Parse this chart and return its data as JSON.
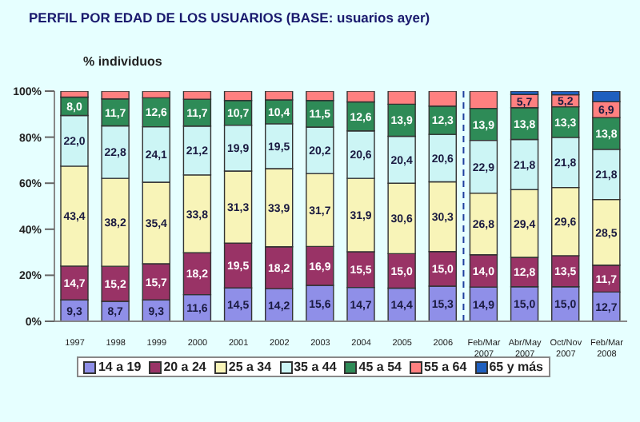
{
  "chart_data": {
    "type": "bar",
    "stacked": true,
    "title": "PERFIL POR EDAD DE LOS USUARIOS (BASE: usuarios ayer)",
    "ylabel": "% individuos",
    "categories": [
      "1997",
      "1998",
      "1999",
      "2000",
      "2001",
      "2002",
      "2003",
      "2004",
      "2005",
      "2006",
      "Feb/Mar 2007",
      "Abr/May 2007",
      "Oct/Nov 2007",
      "Feb/Mar 2008"
    ],
    "series": [
      {
        "name": "14 a 19",
        "color": "#8f8fe8",
        "values": [
          9.3,
          8.7,
          9.3,
          11.6,
          14.5,
          14.2,
          15.6,
          14.7,
          14.4,
          15.3,
          14.9,
          15.0,
          15.0,
          12.7
        ],
        "value_labels": [
          "9,3",
          "8,7",
          "9,3",
          "11,6",
          "14,5",
          "14,2",
          "15,6",
          "14,7",
          "14,4",
          "15,3",
          "14,9",
          "15,0",
          "15,0",
          "12,7"
        ]
      },
      {
        "name": "20 a 24",
        "color": "#993366",
        "values": [
          14.7,
          15.2,
          15.7,
          18.2,
          19.5,
          18.2,
          16.9,
          15.5,
          15.0,
          15.0,
          14.0,
          12.8,
          13.5,
          11.7
        ],
        "value_labels": [
          "14,7",
          "15,2",
          "15,7",
          "18,2",
          "19,5",
          "18,2",
          "16,9",
          "15,5",
          "15,0",
          "15,0",
          "14,0",
          "12,8",
          "13,5",
          "11,7"
        ]
      },
      {
        "name": "25 a 34",
        "color": "#f8f4b8",
        "values": [
          43.4,
          38.2,
          35.4,
          33.8,
          31.3,
          33.9,
          31.7,
          31.9,
          30.6,
          30.3,
          26.8,
          29.4,
          29.6,
          28.5
        ],
        "value_labels": [
          "43,4",
          "38,2",
          "35,4",
          "33,8",
          "31,3",
          "33,9",
          "31,7",
          "31,9",
          "30,6",
          "30,3",
          "26,8",
          "29,4",
          "29,6",
          "28,5"
        ]
      },
      {
        "name": "35 a 44",
        "color": "#ccf5f5",
        "values": [
          22.0,
          22.8,
          24.1,
          21.2,
          19.9,
          19.5,
          20.2,
          20.6,
          20.4,
          20.6,
          22.9,
          21.8,
          21.8,
          21.8
        ],
        "value_labels": [
          "22,0",
          "22,8",
          "24,1",
          "21,2",
          "19,9",
          "19,5",
          "20,2",
          "20,6",
          "20,4",
          "20,6",
          "22,9",
          "21,8",
          "21,8",
          "21,8"
        ]
      },
      {
        "name": "45 a 54",
        "color": "#2e8b57",
        "values": [
          8.0,
          11.7,
          12.6,
          11.7,
          10.7,
          10.4,
          11.5,
          12.6,
          13.9,
          12.3,
          13.9,
          13.8,
          13.3,
          13.8
        ],
        "value_labels": [
          "8,0",
          "11,7",
          "12,6",
          "11,7",
          "10,7",
          "10,4",
          "11,5",
          "12,6",
          "13,9",
          "12,3",
          "13,9",
          "13,8",
          "13,3",
          "13,8"
        ]
      },
      {
        "name": "55 a 64",
        "color": "#ff8080",
        "values": [
          2.6,
          3.4,
          2.9,
          3.5,
          4.1,
          3.8,
          4.1,
          4.7,
          5.7,
          6.5,
          7.5,
          5.7,
          5.2,
          6.9
        ],
        "value_labels": [
          null,
          null,
          null,
          null,
          null,
          null,
          null,
          null,
          null,
          null,
          null,
          "5,7",
          "5,2",
          "6,9"
        ]
      },
      {
        "name": "65 y más",
        "color": "#1f5fbf",
        "values": [
          null,
          null,
          null,
          null,
          null,
          null,
          null,
          null,
          null,
          null,
          null,
          1.5,
          1.6,
          4.6
        ]
      }
    ],
    "ylim": [
      0,
      100
    ],
    "yticks": [
      {
        "value": 0,
        "label": "0%"
      },
      {
        "value": 20,
        "label": "20%"
      },
      {
        "value": 40,
        "label": "40%"
      },
      {
        "value": 60,
        "label": "60%"
      },
      {
        "value": 80,
        "label": "80%"
      },
      {
        "value": 100,
        "label": "100%"
      }
    ],
    "ref_lines": [
      {
        "axis": "x",
        "value": "Feb/Mar 2007",
        "color": "#1f3f9f",
        "line_style": "dashed"
      }
    ],
    "legend": "bottom"
  }
}
